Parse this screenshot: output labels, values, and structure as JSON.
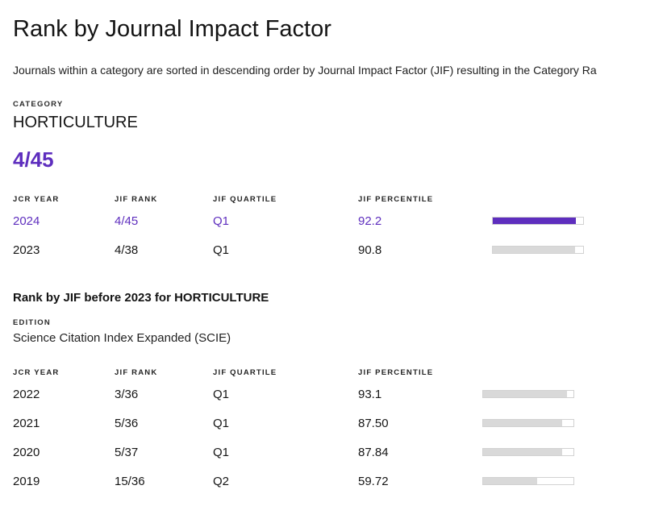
{
  "page": {
    "title": "Rank by Journal Impact Factor",
    "description": "Journals within a category are sorted in descending order by Journal Impact Factor (JIF) resulting in the Category Ra"
  },
  "colors": {
    "accent": "#5e2ebe",
    "bar_gray": "#d9d9d9"
  },
  "category": {
    "label": "CATEGORY",
    "name": "HORTICULTURE",
    "rank": "4/45"
  },
  "current_table": {
    "headers": [
      "JCR YEAR",
      "JIF RANK",
      "JIF QUARTILE",
      "JIF PERCENTILE"
    ],
    "rows": [
      {
        "year": "2024",
        "jif_rank": "4/45",
        "quartile": "Q1",
        "percentile": "92.2",
        "highlighted": true
      },
      {
        "year": "2023",
        "jif_rank": "4/38",
        "quartile": "Q1",
        "percentile": "90.8",
        "highlighted": false
      }
    ]
  },
  "historical": {
    "heading": "Rank by JIF before 2023 for HORTICULTURE",
    "edition_label": "EDITION",
    "edition": "Science Citation Index Expanded (SCIE)",
    "headers": [
      "JCR YEAR",
      "JIF RANK",
      "JIF QUARTILE",
      "JIF PERCENTILE"
    ],
    "rows": [
      {
        "year": "2022",
        "jif_rank": "3/36",
        "quartile": "Q1",
        "percentile": "93.1"
      },
      {
        "year": "2021",
        "jif_rank": "5/36",
        "quartile": "Q1",
        "percentile": "87.50"
      },
      {
        "year": "2020",
        "jif_rank": "5/37",
        "quartile": "Q1",
        "percentile": "87.84"
      },
      {
        "year": "2019",
        "jif_rank": "15/36",
        "quartile": "Q2",
        "percentile": "59.72"
      }
    ]
  }
}
